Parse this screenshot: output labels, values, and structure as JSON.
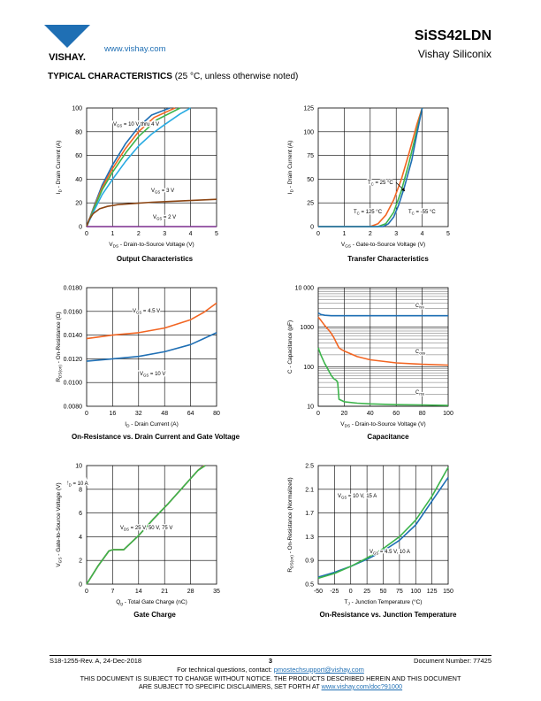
{
  "header": {
    "logo_text": "VISHAY.",
    "url": "www.vishay.com",
    "part_number": "SiSS42LDN",
    "company": "Vishay Siliconix"
  },
  "section": {
    "title": "TYPICAL CHARACTERISTICS",
    "condition": "(25 °C, unless otherwise noted)"
  },
  "charts": [
    {
      "caption": "Output Characteristics",
      "xlabel": "V_DS - Drain-to-Source Voltage (V)",
      "ylabel": "I_D - Drain Current (A)",
      "xticks": [
        "0",
        "1",
        "2",
        "3",
        "4",
        "5"
      ],
      "yticks": [
        "0",
        "20",
        "40",
        "60",
        "80",
        "100"
      ],
      "annotations": [
        "V_GS = 10 V thru 4 V",
        "V_GS = 3 V",
        "V_GS = 2 V"
      ]
    },
    {
      "caption": "Transfer Characteristics",
      "xlabel": "V_GS - Gate-to-Source Voltage (V)",
      "ylabel": "I_D - Drain Current (A)",
      "xticks": [
        "0",
        "1",
        "2",
        "3",
        "4",
        "5"
      ],
      "yticks": [
        "0",
        "25",
        "50",
        "75",
        "100",
        "125"
      ],
      "annotations": [
        "T_C = 25 °C",
        "T_C = 125 °C",
        "T_C = -55 °C"
      ]
    },
    {
      "caption": "On-Resistance vs. Drain Current and Gate Voltage",
      "xlabel": "I_D - Drain Current (A)",
      "ylabel": "R_DS(on) - On-Resistance (Ω)",
      "xticks": [
        "0",
        "16",
        "32",
        "48",
        "64",
        "80"
      ],
      "yticks": [
        "0.0080",
        "0.0100",
        "0.0120",
        "0.0140",
        "0.0160",
        "0.0180"
      ],
      "annotations": [
        "V_GS = 4.5 V",
        "V_GS = 10 V"
      ]
    },
    {
      "caption": "Capacitance",
      "xlabel": "V_DS - Drain-to-Source Voltage (V)",
      "ylabel": "C - Capacitance (pF)",
      "xticks": [
        "0",
        "20",
        "40",
        "60",
        "80",
        "100"
      ],
      "yticks": [
        "10",
        "100",
        "1000",
        "10 000"
      ],
      "annotations": [
        "C_iss",
        "C_oss",
        "C_rss"
      ]
    },
    {
      "caption": "Gate Charge",
      "xlabel": "Q_g - Total Gate Charge (nC)",
      "ylabel": "V_GS - Gate-to-Source Voltage (V)",
      "xticks": [
        "0",
        "7",
        "14",
        "21",
        "28",
        "35"
      ],
      "yticks": [
        "0",
        "2",
        "4",
        "6",
        "8",
        "10"
      ],
      "annotations": [
        "I_D = 10 A",
        "V_DS = 25 V, 50 V, 75 V"
      ]
    },
    {
      "caption": "On-Resistance vs. Junction Temperature",
      "xlabel": "T_J - Junction Temperature (°C)",
      "ylabel": "R_DS(on) - On-Resistance (Normalized)",
      "xticks": [
        "-50",
        "-25",
        "0",
        "25",
        "50",
        "75",
        "100",
        "125",
        "150"
      ],
      "yticks": [
        "0.5",
        "0.9",
        "1.3",
        "1.7",
        "2.1",
        "2.5"
      ],
      "annotations": [
        "V_GS = 10 V, 15 A",
        "V_GS = 4.5 V, 10 A"
      ]
    }
  ],
  "chart_data": [
    {
      "type": "line",
      "xlim": [
        0,
        5
      ],
      "ylim": [
        0,
        100
      ],
      "grid": true,
      "series": [
        {
          "color": "#1f6fb4",
          "x": [
            0,
            0.3,
            0.6,
            1,
            1.5,
            2,
            2.5,
            3.2
          ],
          "y": [
            0,
            18,
            35,
            52,
            70,
            84,
            94,
            100
          ]
        },
        {
          "color": "#f26522",
          "x": [
            0,
            0.3,
            0.6,
            1,
            1.5,
            2,
            2.6,
            3.4
          ],
          "y": [
            0,
            17,
            33,
            49,
            66,
            80,
            92,
            100
          ]
        },
        {
          "color": "#3cb44b",
          "x": [
            0,
            0.3,
            0.6,
            1,
            1.5,
            2,
            2.7,
            3.6
          ],
          "y": [
            0,
            16,
            31,
            46,
            62,
            76,
            90,
            100
          ]
        },
        {
          "color": "#29abe2",
          "x": [
            0,
            0.3,
            0.6,
            1,
            1.5,
            2,
            2.5,
            3,
            3.6,
            4.0
          ],
          "y": [
            0,
            14,
            27,
            40,
            55,
            68,
            78,
            86,
            95,
            100
          ]
        },
        {
          "color": "#8b4513",
          "x": [
            0,
            0.1,
            0.25,
            0.5,
            0.8,
            1.2,
            1.8,
            2.5,
            3.5,
            5
          ],
          "y": [
            0,
            6,
            11,
            15,
            17,
            18.5,
            19.5,
            20.5,
            21.5,
            23
          ]
        },
        {
          "color": "#7b2d8e",
          "x": [
            0,
            1,
            2,
            3,
            4,
            5
          ],
          "y": [
            0,
            0,
            0,
            0,
            0,
            0
          ]
        }
      ]
    },
    {
      "type": "line",
      "xlim": [
        0,
        5
      ],
      "ylim": [
        0,
        125
      ],
      "grid": true,
      "series": [
        {
          "color": "#f26522",
          "x": [
            0,
            2.0,
            2.3,
            2.6,
            2.9,
            3.2,
            3.5,
            3.8,
            4.0
          ],
          "y": [
            0,
            0,
            3,
            12,
            28,
            50,
            78,
            108,
            125
          ]
        },
        {
          "color": "#3cb44b",
          "x": [
            0,
            2.3,
            2.6,
            2.9,
            3.2,
            3.5,
            3.8,
            4.0
          ],
          "y": [
            0,
            0,
            3,
            15,
            38,
            68,
            102,
            125
          ]
        },
        {
          "color": "#1f6fb4",
          "x": [
            0,
            2.5,
            2.7,
            2.9,
            3.1,
            3.3,
            3.6,
            3.8,
            4.0
          ],
          "y": [
            0,
            0,
            3,
            10,
            23,
            40,
            70,
            98,
            125
          ]
        }
      ]
    },
    {
      "type": "line",
      "xlim": [
        0,
        80
      ],
      "ylim": [
        0.008,
        0.018
      ],
      "grid": true,
      "series": [
        {
          "color": "#f26522",
          "x": [
            0,
            16,
            32,
            48,
            64,
            72,
            80
          ],
          "y": [
            0.0137,
            0.014,
            0.0142,
            0.0146,
            0.0153,
            0.0159,
            0.0167
          ]
        },
        {
          "color": "#1f6fb4",
          "x": [
            0,
            16,
            32,
            48,
            64,
            72,
            80
          ],
          "y": [
            0.0118,
            0.012,
            0.0122,
            0.0126,
            0.0132,
            0.0137,
            0.0142
          ]
        }
      ]
    },
    {
      "type": "line",
      "xlim": [
        0,
        100
      ],
      "ylim": [
        10,
        10000
      ],
      "yscale": "log",
      "grid": true,
      "series": [
        {
          "color": "#1f6fb4",
          "x": [
            0,
            2,
            5,
            10,
            20,
            40,
            60,
            80,
            100
          ],
          "y": [
            2300,
            2100,
            2000,
            1950,
            1950,
            1950,
            1950,
            1950,
            1950
          ]
        },
        {
          "color": "#f26522",
          "x": [
            0,
            2,
            5,
            8,
            10,
            12,
            14,
            16,
            18,
            20,
            30,
            40,
            60,
            80,
            100
          ],
          "y": [
            1800,
            1500,
            1100,
            850,
            700,
            550,
            400,
            300,
            270,
            250,
            180,
            150,
            125,
            115,
            110
          ]
        },
        {
          "color": "#3cb44b",
          "x": [
            0,
            2,
            5,
            8,
            10,
            12,
            14,
            15,
            16,
            18,
            20,
            30,
            40,
            60,
            80,
            100
          ],
          "y": [
            300,
            200,
            120,
            80,
            60,
            50,
            45,
            40,
            15,
            14,
            13,
            12,
            11.5,
            11,
            10.8,
            10.5
          ]
        }
      ]
    },
    {
      "type": "line",
      "xlim": [
        0,
        35
      ],
      "ylim": [
        0,
        10
      ],
      "grid": true,
      "series": [
        {
          "color": "#1f6fb4",
          "x": [
            0,
            3,
            6,
            7,
            10,
            14,
            18,
            22,
            26,
            30,
            31.5
          ],
          "y": [
            0,
            1.5,
            2.8,
            2.9,
            2.9,
            4.1,
            5.5,
            6.8,
            8.2,
            9.6,
            10
          ]
        },
        {
          "color": "#f26522",
          "x": [
            0,
            3,
            6,
            7,
            10,
            14,
            18,
            22,
            26,
            30,
            31.7
          ],
          "y": [
            0,
            1.5,
            2.8,
            2.9,
            2.9,
            4.1,
            5.5,
            6.8,
            8.2,
            9.6,
            10
          ]
        },
        {
          "color": "#3cb44b",
          "x": [
            0,
            3,
            6,
            7,
            10,
            14,
            18,
            22,
            26,
            30,
            32
          ],
          "y": [
            0,
            1.5,
            2.8,
            2.9,
            2.9,
            4.1,
            5.5,
            6.8,
            8.2,
            9.6,
            10
          ]
        }
      ]
    },
    {
      "type": "line",
      "xlim": [
        -50,
        150
      ],
      "ylim": [
        0.5,
        2.5
      ],
      "grid": true,
      "series": [
        {
          "color": "#1f6fb4",
          "x": [
            -50,
            -25,
            0,
            25,
            50,
            75,
            100,
            125,
            150
          ],
          "y": [
            0.62,
            0.7,
            0.8,
            0.92,
            1.06,
            1.24,
            1.5,
            1.9,
            2.3
          ]
        },
        {
          "color": "#3cb44b",
          "x": [
            -50,
            -25,
            0,
            25,
            50,
            75,
            100,
            125,
            150
          ],
          "y": [
            0.6,
            0.68,
            0.8,
            0.94,
            1.1,
            1.3,
            1.58,
            1.98,
            2.47
          ]
        }
      ]
    }
  ],
  "footer": {
    "revision": "S18-1255-Rev. A, 24-Dec-2018",
    "page": "3",
    "document_number": "Document Number: 77425",
    "tech_prefix": "For technical questions, contact: ",
    "tech_email": "pmostechsupport@vishay.com",
    "disclaimer_line1": "THIS DOCUMENT IS SUBJECT TO CHANGE WITHOUT NOTICE. THE PRODUCTS DESCRIBED HEREIN AND THIS DOCUMENT",
    "disclaimer_line2_prefix": "ARE SUBJECT TO SPECIFIC DISCLAIMERS, SET FORTH AT ",
    "disclaimer_url": "www.vishay.com/doc?91000"
  }
}
